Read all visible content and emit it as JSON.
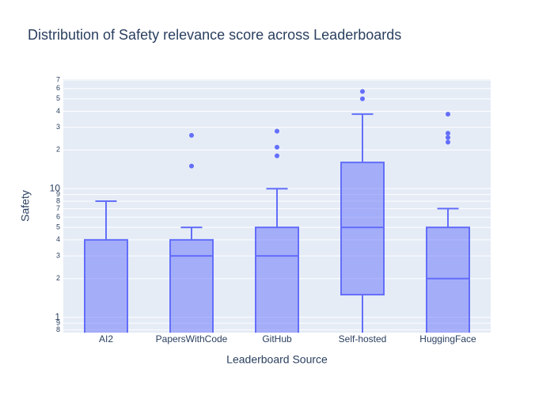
{
  "chart_data": {
    "type": "box",
    "title": "Distribution of Safety relevance score across Leaderboards",
    "x_label": "Leaderboard Source",
    "y_label": "Safety",
    "y_scale": "log",
    "color": "#636efa",
    "grid": true,
    "categories": [
      "AI2",
      "PapersWithCode",
      "GitHub",
      "Self-hosted",
      "HuggingFace"
    ],
    "boxes": [
      {
        "min": 0,
        "q1": 0,
        "median": 0,
        "q3": 4,
        "max": 8,
        "outliers": []
      },
      {
        "min": 0,
        "q1": 0,
        "median": 3,
        "q3": 4,
        "max": 5,
        "outliers": [
          15,
          26
        ]
      },
      {
        "min": 0,
        "q1": 0,
        "median": 3,
        "q3": 5,
        "max": 10,
        "outliers": [
          18,
          21,
          28
        ]
      },
      {
        "min": 0,
        "q1": 1.5,
        "median": 5,
        "q3": 16,
        "max": 38,
        "outliers": [
          50,
          57
        ]
      },
      {
        "min": 0,
        "q1": 0,
        "median": 2,
        "q3": 5,
        "max": 7,
        "outliers": [
          23,
          25,
          27,
          38
        ]
      }
    ],
    "ylim": [
      0.76,
      71
    ],
    "yticks": [
      {
        "value": 0.8,
        "label": "8"
      },
      {
        "value": 0.9,
        "label": "9"
      },
      1,
      2,
      3,
      4,
      5,
      6,
      7,
      8,
      9,
      10,
      {
        "value": 20,
        "label": "2"
      },
      {
        "value": 30,
        "label": "3"
      },
      {
        "value": 40,
        "label": "4"
      },
      {
        "value": 50,
        "label": "5"
      },
      {
        "value": 60,
        "label": "6"
      },
      {
        "value": 70,
        "label": "7"
      }
    ]
  }
}
